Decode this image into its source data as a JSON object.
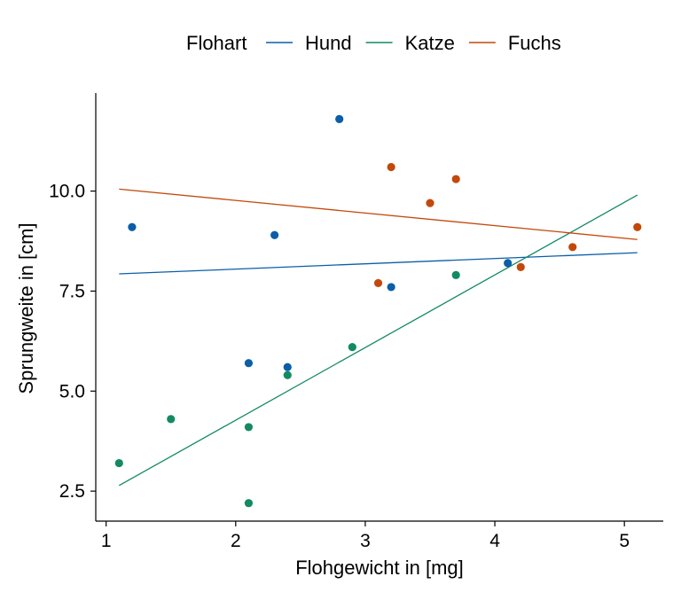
{
  "chart_data": {
    "type": "scatter",
    "title": "",
    "xlabel": "Flohgewicht in [mg]",
    "ylabel": "Sprungweite in [cm]",
    "xlim": [
      0.92,
      5.3
    ],
    "ylim": [
      1.75,
      12.45
    ],
    "x_ticks": [
      1,
      2,
      3,
      4,
      5
    ],
    "x_tick_labels": [
      "1",
      "2",
      "3",
      "4",
      "5"
    ],
    "y_ticks": [
      2.5,
      5.0,
      7.5,
      10.0
    ],
    "y_tick_labels": [
      "2.5",
      "5.0",
      "7.5",
      "10.0"
    ],
    "grid": false,
    "legend": {
      "title": "Flohart",
      "placement": "top"
    },
    "series": [
      {
        "name": "Hund",
        "color": "#0b5ea8",
        "points": [
          [
            1.2,
            9.1
          ],
          [
            2.1,
            5.7
          ],
          [
            2.3,
            8.9
          ],
          [
            2.4,
            5.6
          ],
          [
            2.8,
            11.8
          ],
          [
            3.2,
            7.6
          ],
          [
            4.1,
            8.2
          ]
        ],
        "trend": {
          "x": [
            1.1,
            5.1
          ],
          "y": [
            7.93,
            8.46
          ]
        }
      },
      {
        "name": "Katze",
        "color": "#138a63",
        "points": [
          [
            1.1,
            3.2
          ],
          [
            1.5,
            4.3
          ],
          [
            2.1,
            4.1
          ],
          [
            2.1,
            2.2
          ],
          [
            2.4,
            5.4
          ],
          [
            2.9,
            6.1
          ],
          [
            3.7,
            7.9
          ]
        ],
        "trend": {
          "x": [
            1.1,
            5.1
          ],
          "y": [
            2.64,
            9.9
          ]
        }
      },
      {
        "name": "Fuchs",
        "color": "#c2490b",
        "points": [
          [
            3.1,
            7.7
          ],
          [
            3.2,
            10.6
          ],
          [
            3.5,
            9.7
          ],
          [
            3.7,
            10.3
          ],
          [
            4.2,
            8.1
          ],
          [
            4.6,
            8.6
          ],
          [
            5.1,
            9.1
          ]
        ],
        "trend": {
          "x": [
            1.1,
            5.1
          ],
          "y": [
            10.05,
            8.79
          ]
        }
      }
    ]
  }
}
